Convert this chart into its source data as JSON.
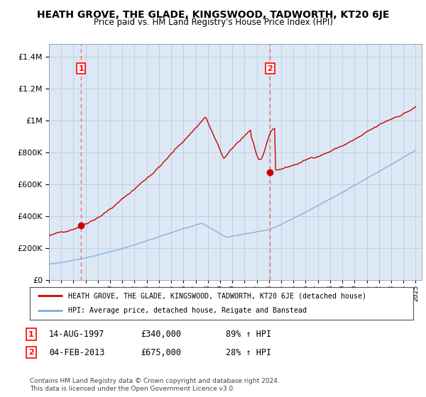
{
  "title": "HEATH GROVE, THE GLADE, KINGSWOOD, TADWORTH, KT20 6JE",
  "subtitle": "Price paid vs. HM Land Registry's House Price Index (HPI)",
  "ytick_values": [
    0,
    200000,
    400000,
    600000,
    800000,
    1000000,
    1200000,
    1400000
  ],
  "ytick_labels": [
    "£0",
    "£200K",
    "£400K",
    "£600K",
    "£800K",
    "£1M",
    "£1.2M",
    "£1.4M"
  ],
  "ylim": [
    0,
    1480000
  ],
  "xlim_start": 1995.0,
  "xlim_end": 2025.5,
  "sale1_date": 1997.62,
  "sale1_price": 340000,
  "sale1_label": "1",
  "sale2_date": 2013.09,
  "sale2_price": 675000,
  "sale2_label": "2",
  "legend_line1": "HEATH GROVE, THE GLADE, KINGSWOOD, TADWORTH, KT20 6JE (detached house)",
  "legend_line2": "HPI: Average price, detached house, Reigate and Banstead",
  "date1_str": "14-AUG-1997",
  "price1_str": "£340,000",
  "pct1_str": "89% ↑ HPI",
  "date2_str": "04-FEB-2013",
  "price2_str": "£675,000",
  "pct2_str": "28% ↑ HPI",
  "footnote": "Contains HM Land Registry data © Crown copyright and database right 2024.\nThis data is licensed under the Open Government Licence v3.0.",
  "line_color_red": "#cc0000",
  "line_color_blue": "#7aacdc",
  "dashed_line_color": "#e87070",
  "bg_color": "#dce8f5",
  "grid_color": "#c0ccd8"
}
